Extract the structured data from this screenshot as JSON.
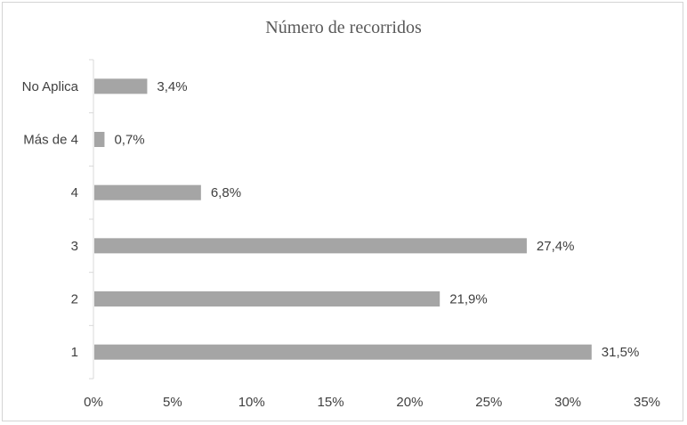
{
  "chart_data": {
    "type": "bar",
    "orientation": "horizontal",
    "title": "Número de recorridos",
    "categories": [
      "No Aplica",
      "Más de 4",
      "4",
      "3",
      "2",
      "1"
    ],
    "values": [
      3.4,
      0.7,
      6.8,
      27.4,
      21.9,
      31.5
    ],
    "data_labels": [
      "3,4%",
      "0,7%",
      "6,8%",
      "27,4%",
      "21,9%",
      "31,5%"
    ],
    "x_ticks": [
      "0%",
      "5%",
      "10%",
      "15%",
      "20%",
      "25%",
      "30%",
      "35%"
    ],
    "xlim": [
      0,
      35
    ],
    "xlabel": "",
    "ylabel": "",
    "grid": false,
    "bar_color": "#a5a5a5"
  }
}
